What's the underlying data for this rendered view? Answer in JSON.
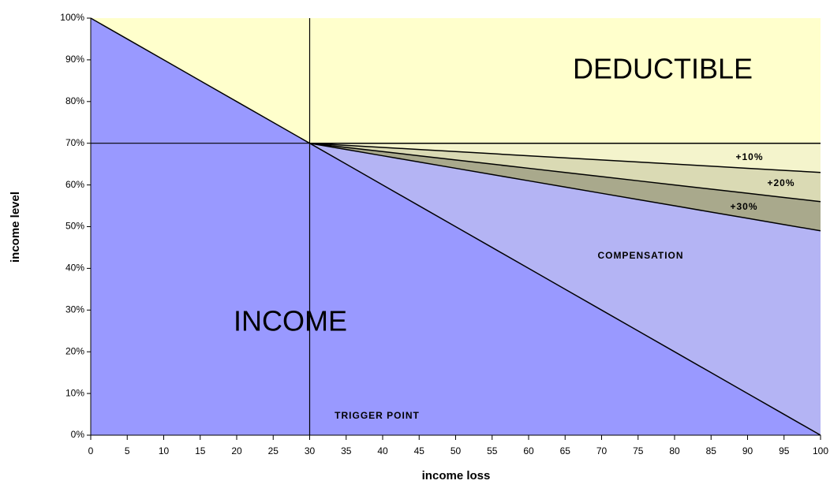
{
  "chart_data": {
    "type": "area",
    "x_label": "income loss",
    "y_label": "income level",
    "x": [
      0,
      5,
      10,
      15,
      20,
      25,
      30,
      35,
      40,
      45,
      50,
      55,
      60,
      65,
      70,
      75,
      80,
      85,
      90,
      95,
      100
    ],
    "series": [
      {
        "color": "#f4f4cc",
        "values": [
          null,
          null,
          null,
          null,
          null,
          null,
          70,
          70,
          70,
          70,
          70,
          70,
          70,
          70,
          70,
          70,
          70,
          70,
          70,
          70,
          70
        ]
      },
      {
        "color": "#dadab4",
        "values": [
          null,
          null,
          null,
          null,
          null,
          null,
          70,
          69.5,
          69,
          68.5,
          68,
          67.5,
          67,
          66.5,
          66,
          65.5,
          65,
          64.5,
          64,
          63.5,
          63
        ]
      },
      {
        "color": "#a9a98c",
        "values": [
          null,
          null,
          null,
          null,
          null,
          null,
          70,
          69,
          68,
          67,
          66,
          65,
          64,
          63,
          62,
          61,
          60,
          59,
          58,
          57,
          56
        ]
      },
      {
        "color": "#b4b4f4",
        "values": [
          null,
          null,
          null,
          null,
          null,
          null,
          70,
          68.5,
          67,
          65.5,
          64,
          62.5,
          61,
          59.5,
          58,
          56.5,
          55,
          53.5,
          52,
          50.5,
          49
        ]
      },
      {
        "color": "#9999ff",
        "values": [
          100,
          95,
          90,
          85,
          80,
          75,
          70,
          65,
          60,
          55,
          50,
          45,
          40,
          35,
          30,
          25,
          20,
          15,
          10,
          5,
          0
        ]
      }
    ],
    "background": "#ffffcc",
    "trigger": {
      "x": 30,
      "y": 70
    },
    "annotations": [
      "DEDUCTIBLE",
      "INCOME",
      "COMPENSATION",
      "TRIGGER POINT",
      "+10%",
      "+20%",
      "+30%"
    ],
    "xlim": [
      0,
      100
    ],
    "ylim": [
      0,
      100
    ],
    "xticks": [
      0,
      5,
      10,
      15,
      20,
      25,
      30,
      35,
      40,
      45,
      50,
      55,
      60,
      65,
      70,
      75,
      80,
      85,
      90,
      95,
      100
    ],
    "yticks": [
      {
        "value": 0,
        "label": "0%"
      },
      {
        "value": 10,
        "label": "10%"
      },
      {
        "value": 20,
        "label": "20%"
      },
      {
        "value": 30,
        "label": "30%"
      },
      {
        "value": 40,
        "label": "40%"
      },
      {
        "value": 50,
        "label": "50%"
      },
      {
        "value": 60,
        "label": "60%"
      },
      {
        "value": 70,
        "label": "70%"
      },
      {
        "value": 80,
        "label": "80%"
      },
      {
        "value": 90,
        "label": "90%"
      },
      {
        "value": 100,
        "label": "100%"
      }
    ]
  }
}
